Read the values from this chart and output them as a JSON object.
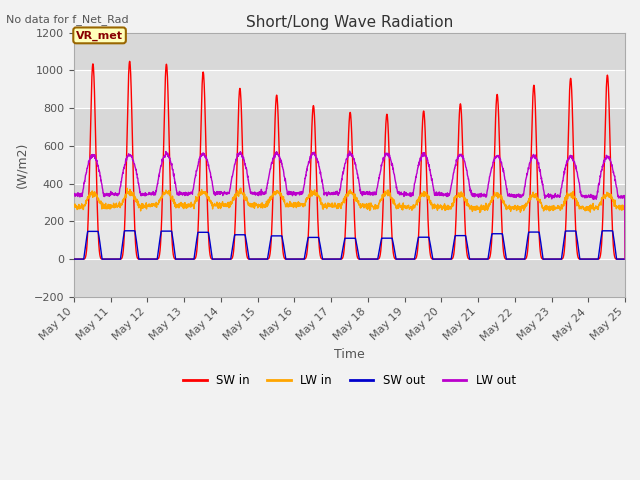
{
  "title": "Short/Long Wave Radiation",
  "subtitle": "No data for f_Net_Rad",
  "xlabel": "Time",
  "ylabel": "(W/m2)",
  "ylim": [
    -200,
    1200
  ],
  "yticks": [
    -200,
    0,
    200,
    400,
    600,
    800,
    1000,
    1200
  ],
  "legend_labels": [
    "SW in",
    "LW in",
    "SW out",
    "LW out"
  ],
  "legend_colors": [
    "#ff0000",
    "#ffa500",
    "#0000ff",
    "#bb00bb"
  ],
  "box_label": "VR_met",
  "box_facecolor": "#ffffbb",
  "box_edgecolor": "#996600",
  "box_textcolor": "#880000",
  "n_days": 15,
  "start_day": 10,
  "end_day": 25,
  "plot_bg": "#e8e8e8",
  "band_color1": "#e0e0e0",
  "band_color2": "#cccccc",
  "fig_bg": "#f2f2f2"
}
